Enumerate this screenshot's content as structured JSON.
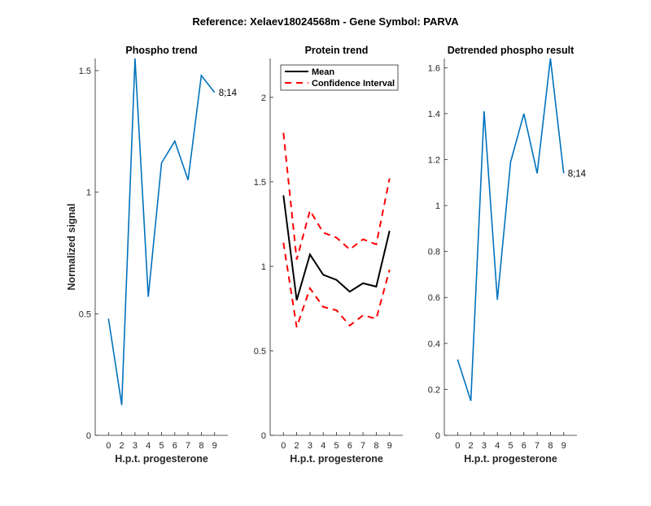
{
  "figure_title": "Reference:  Xelaev18024568m - Gene Symbol:  PARVA",
  "chart_data": [
    {
      "type": "line",
      "title": "Phospho trend",
      "xlabel": "H.p.t. progesterone",
      "ylabel": "Normalized signal",
      "categories": [
        "0",
        "2",
        "3",
        "4",
        "5",
        "6",
        "7",
        "8",
        "9"
      ],
      "ylim": [
        0,
        1.55
      ],
      "yticks": [
        0,
        0.5,
        1,
        1.5
      ],
      "ytick_labels": [
        "0",
        "0.5",
        "1",
        "1.5"
      ],
      "series": [
        {
          "name": "Phospho",
          "color": "#0072BD",
          "values": [
            0.48,
            0.125,
            1.55,
            0.57,
            1.12,
            1.21,
            1.05,
            1.48,
            1.41
          ]
        }
      ],
      "annotation": "8;14"
    },
    {
      "type": "line",
      "title": "Protein trend",
      "xlabel": "H.p.t. progesterone",
      "ylabel": "",
      "categories": [
        "0",
        "2",
        "3",
        "4",
        "5",
        "6",
        "7",
        "8",
        "9"
      ],
      "ylim": [
        0,
        2.23
      ],
      "yticks": [
        0,
        0.5,
        1,
        1.5,
        2
      ],
      "ytick_labels": [
        "0",
        "0.5",
        "1",
        "1.5",
        "2"
      ],
      "legend": {
        "placement": "top",
        "entries": [
          "Mean",
          "Confidence Interval"
        ]
      },
      "series": [
        {
          "name": "Mean",
          "color": "#000000",
          "style": "solid",
          "values": [
            1.42,
            0.8,
            1.07,
            0.95,
            0.92,
            0.85,
            0.9,
            0.88,
            1.21
          ]
        },
        {
          "name": "Confidence Interval upper",
          "color": "#FF0000",
          "style": "dashed",
          "values": [
            1.79,
            1.04,
            1.33,
            1.2,
            1.17,
            1.1,
            1.16,
            1.13,
            1.52
          ]
        },
        {
          "name": "Confidence Interval lower",
          "color": "#FF0000",
          "style": "dashed",
          "values": [
            1.14,
            0.64,
            0.87,
            0.76,
            0.74,
            0.65,
            0.71,
            0.69,
            0.98
          ]
        }
      ]
    },
    {
      "type": "line",
      "title": "Detrended phospho result",
      "xlabel": "H.p.t. progesterone",
      "ylabel": "",
      "categories": [
        "0",
        "2",
        "3",
        "4",
        "5",
        "6",
        "7",
        "8",
        "9"
      ],
      "ylim": [
        0,
        1.64
      ],
      "yticks": [
        0,
        0.2,
        0.4,
        0.6,
        0.8,
        1,
        1.2,
        1.4,
        1.6
      ],
      "ytick_labels": [
        "0",
        "0.2",
        "0.4",
        "0.6",
        "0.8",
        "1",
        "1.2",
        "1.4",
        "1.6"
      ],
      "series": [
        {
          "name": "Detrended",
          "color": "#0072BD",
          "values": [
            0.33,
            0.15,
            1.41,
            0.59,
            1.19,
            1.4,
            1.14,
            1.65,
            1.14
          ]
        }
      ],
      "annotation": "8;14"
    }
  ]
}
